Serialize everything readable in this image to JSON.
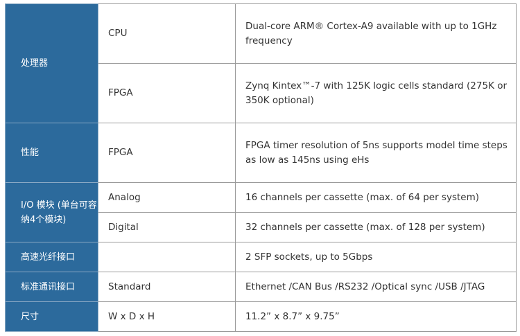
{
  "rows": [
    {
      "category": "处理器",
      "items": [
        {
          "sub": "CPU",
          "desc": "Dual-core ARM® Cortex-A9 available with up to 1GHz frequency"
        },
        {
          "sub": "FPGA",
          "desc": "Zynq Kintex™-7 with 125K logic cells standard (275K or 350K optional)"
        }
      ]
    },
    {
      "category": "性能",
      "items": [
        {
          "sub": "FPGA",
          "desc": "FPGA timer resolution of 5ns supports model time steps as low as 145ns using eHs"
        }
      ]
    },
    {
      "category": "I/O 模块 (单台可容纳4个模块)",
      "items": [
        {
          "sub": "Analog",
          "desc": "16 channels per cassette (max. of 64 per system)"
        },
        {
          "sub": "Digital",
          "desc": "32 channels per cassette (max. of 128 per system)"
        }
      ]
    },
    {
      "category": "高速光纤接口",
      "items": [
        {
          "sub": "",
          "desc": "2 SFP sockets, up to 5Gbps"
        }
      ]
    },
    {
      "category": "标准通讯接口",
      "items": [
        {
          "sub": "Standard",
          "desc": "Ethernet /CAN Bus /RS232 /Optical sync /USB /JTAG"
        }
      ]
    },
    {
      "category": "尺寸",
      "items": [
        {
          "sub": "W x D x H",
          "desc": "11.2” x 8.7” x 9.75”"
        }
      ]
    }
  ],
  "colors": {
    "category_bg": "#2c6a9c",
    "border": "#9a9a9a",
    "text": "#333333"
  }
}
